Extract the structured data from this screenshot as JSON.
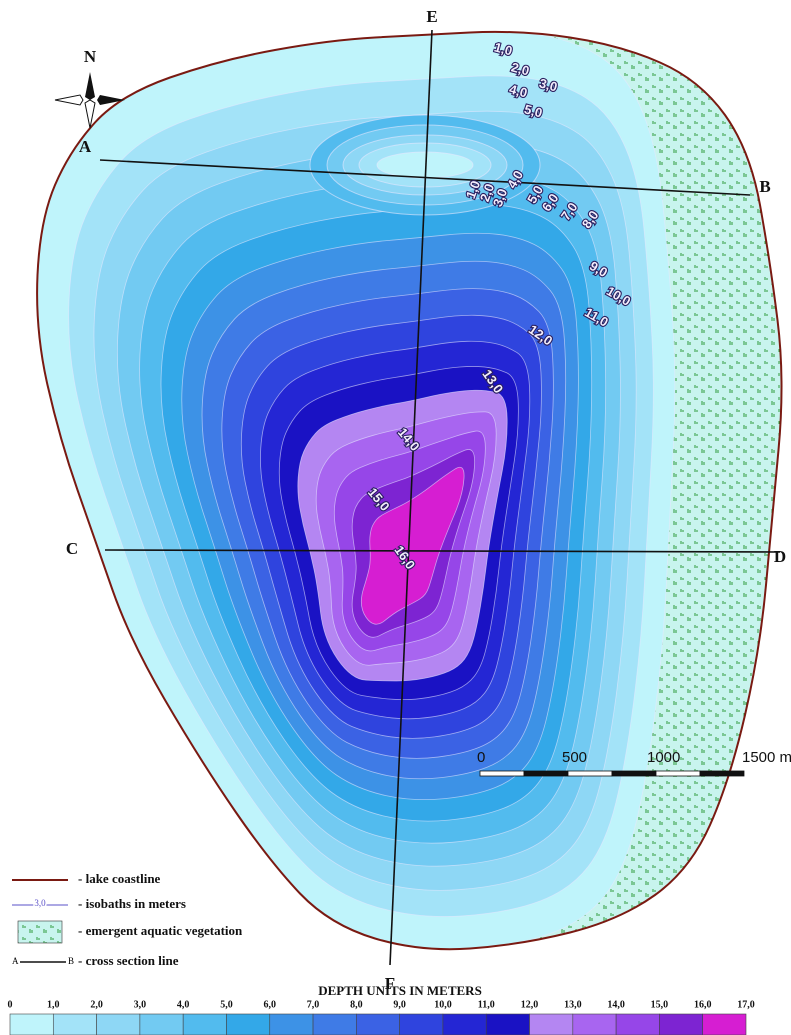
{
  "compass": {
    "label": "N"
  },
  "cross_sections": [
    {
      "start": "A",
      "end": "B"
    },
    {
      "start": "C",
      "end": "D"
    },
    {
      "start": "E",
      "end": "F"
    }
  ],
  "isobath_labels": {
    "north": [
      "1,0",
      "2,0",
      "3,0",
      "4,0",
      "5,0"
    ],
    "island": [
      "1,0",
      "2,0",
      "3,0",
      "4,0",
      "5,0",
      "6,0",
      "7,0",
      "8,0"
    ],
    "deep": [
      "9,0",
      "10,0",
      "11,0",
      "12,0",
      "13,0",
      "14,0",
      "15,0",
      "16,0"
    ]
  },
  "legend": {
    "items": [
      {
        "label": "- lake coastline"
      },
      {
        "label": "- isobaths in meters",
        "sample": "3,0"
      },
      {
        "label": "- emergent aquatic vegetation"
      },
      {
        "label": "- cross section line",
        "sample_start": "A",
        "sample_end": "B"
      }
    ]
  },
  "scale_bar": {
    "ticks": [
      "0",
      "500",
      "1000",
      "1500 m"
    ]
  },
  "depth_legend": {
    "title": "DEPTH UNITS IN METERS",
    "labels": [
      "0",
      "1,0",
      "2,0",
      "3,0",
      "4,0",
      "5,0",
      "6,0",
      "7,0",
      "8,0",
      "9,0",
      "10,0",
      "11,0",
      "12,0",
      "13,0",
      "14,0",
      "15,0",
      "16,0",
      "17,0"
    ],
    "colors": [
      "#bff4fb",
      "#a3e3f8",
      "#8ed7f5",
      "#72caf2",
      "#52bbee",
      "#33a8e8",
      "#3d92e6",
      "#3f7be6",
      "#3b62e4",
      "#2f44de",
      "#2426d4",
      "#1a12c4",
      "#b486f2",
      "#a865f0",
      "#9646e8",
      "#7d24d2",
      "#d61ed2"
    ]
  }
}
